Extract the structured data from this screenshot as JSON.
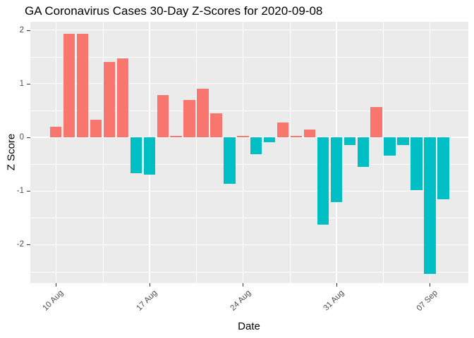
{
  "chart_data": {
    "type": "bar",
    "title": "GA Coronavirus Cases 30-Day Z-Scores for 2020-09-08",
    "xlabel": "Date",
    "ylabel": "Z Score",
    "x": [
      "2020-08-10",
      "2020-08-11",
      "2020-08-12",
      "2020-08-13",
      "2020-08-14",
      "2020-08-15",
      "2020-08-16",
      "2020-08-17",
      "2020-08-18",
      "2020-08-19",
      "2020-08-20",
      "2020-08-21",
      "2020-08-22",
      "2020-08-23",
      "2020-08-24",
      "2020-08-25",
      "2020-08-26",
      "2020-08-27",
      "2020-08-28",
      "2020-08-29",
      "2020-08-30",
      "2020-08-31",
      "2020-09-01",
      "2020-09-02",
      "2020-09-03",
      "2020-09-04",
      "2020-09-05",
      "2020-09-06",
      "2020-09-07",
      "2020-09-08"
    ],
    "values": [
      0.2,
      1.93,
      1.93,
      0.33,
      1.41,
      1.47,
      -0.67,
      -0.7,
      0.79,
      0.03,
      0.7,
      0.9,
      0.45,
      -0.86,
      0.02,
      -0.31,
      -0.09,
      0.28,
      0.02,
      0.14,
      -1.63,
      -1.21,
      -0.14,
      -0.55,
      0.56,
      -0.34,
      -0.14,
      -0.98,
      -2.55,
      -1.15
    ],
    "x_ticks": [
      {
        "index": 0,
        "label": "10 Aug"
      },
      {
        "index": 7,
        "label": "17 Aug"
      },
      {
        "index": 14,
        "label": "24 Aug"
      },
      {
        "index": 21,
        "label": "31 Aug"
      },
      {
        "index": 28,
        "label": "07 Sep"
      }
    ],
    "y_ticks": [
      2,
      1,
      0,
      -1,
      -2
    ],
    "y_minor_ticks": [
      1.5,
      0.5,
      -0.5,
      -1.5,
      -2.5
    ],
    "ylim": [
      -2.72,
      2.16
    ],
    "legend": "none",
    "grid": "major+minor",
    "colors": {
      "positive_bar": "#F8766D",
      "negative_bar": "#00BFC4",
      "panel_background": "#EBEBEB",
      "gridline": "#FFFFFF",
      "axis_text": "#4D4D4D",
      "title_text": "#000000"
    }
  }
}
